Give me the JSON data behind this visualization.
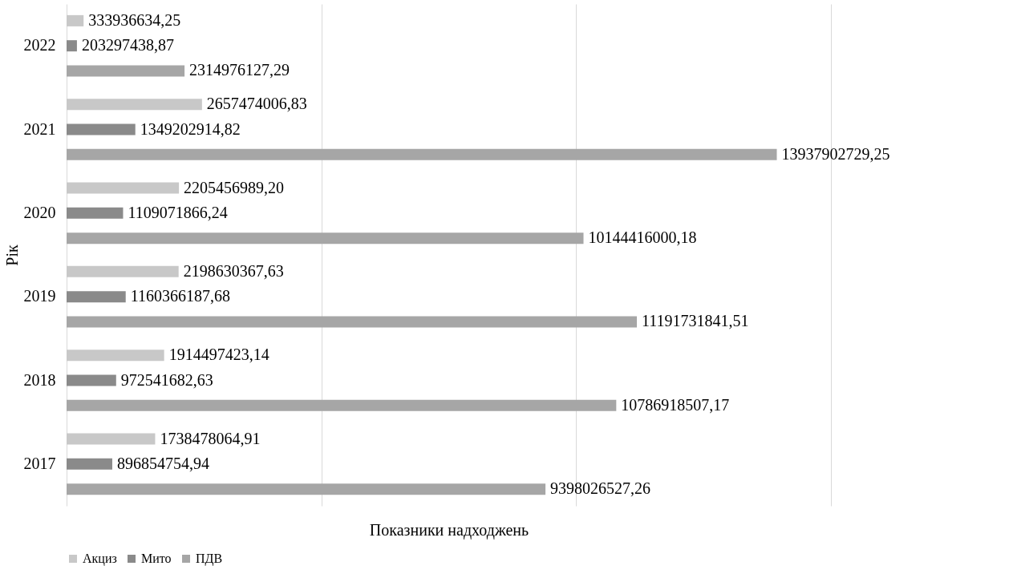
{
  "chart_data": {
    "type": "bar",
    "orientation": "horizontal",
    "xlabel": "Показники надходжень",
    "ylabel": "Рік",
    "categories": [
      "2022",
      "2021",
      "2020",
      "2019",
      "2018",
      "2017"
    ],
    "series": [
      {
        "name": "Акциз",
        "color": "#c8c8c8",
        "values": [
          333936634.25,
          2657474006.83,
          2205456989.2,
          2198630367.63,
          1914497423.14,
          1738478064.91
        ],
        "value_labels": [
          "333936634,25",
          "2657474006,83",
          "2205456989,20",
          "2198630367,63",
          "1914497423,14",
          "1738478064,91"
        ]
      },
      {
        "name": "Мито",
        "color": "#8a8a8a",
        "values": [
          203297438.87,
          1349202914.82,
          1109071866.24,
          1160366187.68,
          972541682.63,
          896854754.94
        ],
        "value_labels": [
          "203297438,87",
          "1349202914,82",
          "1109071866,24",
          "1160366187,68",
          "972541682,63",
          "896854754,94"
        ]
      },
      {
        "name": "ПДВ",
        "color": "#a6a6a6",
        "values": [
          2314976127.29,
          13937902729.25,
          10144416000.18,
          11191731841.51,
          10786918507.17,
          9398026527.26
        ],
        "value_labels": [
          "2314976127,29",
          "13937902729,25",
          "10144416000,18",
          "11191731841,51",
          "10786918507,17",
          "9398026527,26"
        ]
      }
    ],
    "xlim": [
      0,
      15000000000
    ],
    "xticks": [
      {
        "value": 0,
        "label": null
      },
      {
        "value": 5000000000,
        "label": null
      },
      {
        "value": 10000000000,
        "label": null
      },
      {
        "value": 15000000000,
        "label": null
      }
    ],
    "tick_labels": "y",
    "grid": "x",
    "legend": "bottom"
  }
}
